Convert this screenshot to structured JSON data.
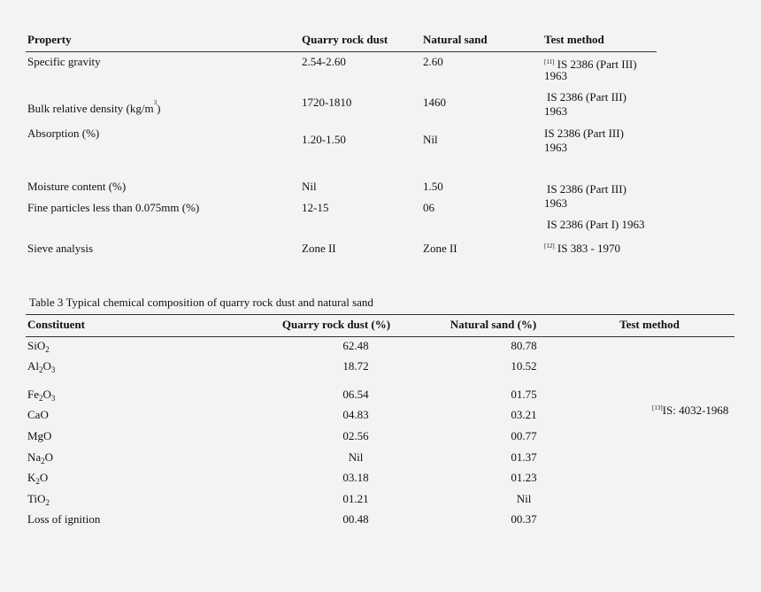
{
  "table2": {
    "headers": {
      "property": "Property",
      "quarry": "Quarry rock dust",
      "sand": "Natural sand",
      "method": "Test method"
    },
    "rows": [
      {
        "property": "Specific gravity",
        "quarry": "2.54-2.60",
        "sand": "2.60",
        "method_ref": "[11]",
        "method_l1": "IS 2386 (Part III)",
        "method_l2": "1963"
      },
      {
        "property_pre": "Bulk relative density (kg/m",
        "property_sup": "3",
        "property_post": ")",
        "quarry": "1720-1810",
        "sand": "1460",
        "method_l1": "IS 2386 (Part III)",
        "method_l2": "1963"
      },
      {
        "property": "Absorption (%)",
        "quarry": "1.20-1.50",
        "sand": "Nil",
        "method_l1": "IS 2386 (Part III)",
        "method_l2": "1963"
      },
      {
        "property": "Moisture content (%)",
        "quarry": "Nil",
        "sand": "1.50",
        "method_l1": "IS 2386 (Part III)",
        "method_l2": "1963"
      },
      {
        "property": "Fine particles less than 0.075mm (%)",
        "quarry": "12-15",
        "sand": "06",
        "method_l1": "IS 2386 (Part I) 1963"
      },
      {
        "property": "Sieve analysis",
        "quarry": "Zone II",
        "sand": "Zone II",
        "method_ref": "[12]",
        "method_l1": "IS 383 - 1970"
      }
    ]
  },
  "table3": {
    "caption": "Table 3 Typical chemical composition of quarry rock dust and natural sand",
    "headers": {
      "constituent": "Constituent",
      "quarry": "Quarry rock dust (%)",
      "sand": "Natural sand (%)",
      "method": "Test method"
    },
    "rows": [
      {
        "base": "SiO",
        "sub": "2",
        "post": "",
        "quarry": "62.48",
        "sand": "80.78"
      },
      {
        "base": "Al",
        "sub": "2",
        "post": "O",
        "sub2": "3",
        "quarry": "18.72",
        "sand": "10.52"
      },
      {
        "base": "Fe",
        "sub": "2",
        "post": "O",
        "sub2": "3",
        "quarry": "06.54",
        "sand": "01.75"
      },
      {
        "base": "CaO",
        "quarry": "04.83",
        "sand": "03.21"
      },
      {
        "base": "MgO",
        "quarry": "02.56",
        "sand": "00.77"
      },
      {
        "base": "Na",
        "sub": "2",
        "post": "O",
        "quarry": "Nil",
        "sand": "01.37"
      },
      {
        "base": "K",
        "sub": "2",
        "post": "O",
        "quarry": "03.18",
        "sand": "01.23"
      },
      {
        "base": "TiO",
        "sub": "2",
        "quarry": "01.21",
        "sand": "Nil"
      },
      {
        "base": "Loss of ignition",
        "quarry": "00.48",
        "sand": "00.37"
      }
    ],
    "method_ref": "[13]",
    "method": "IS: 4032-1968"
  }
}
